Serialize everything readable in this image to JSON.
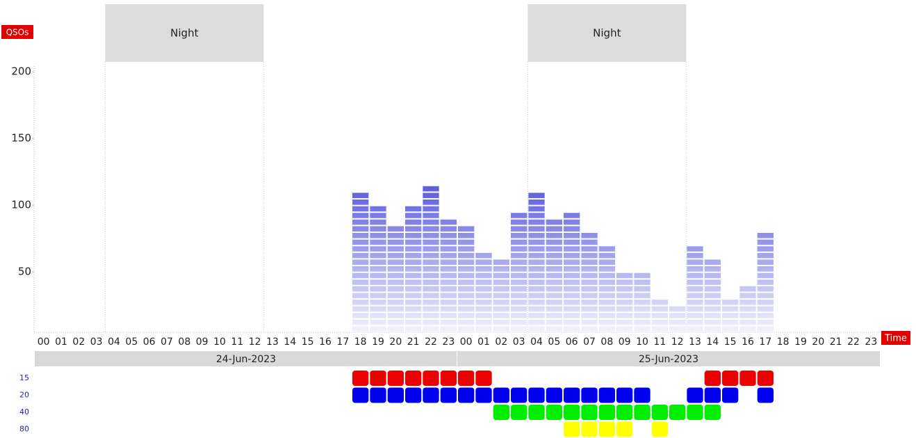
{
  "chart_data": {
    "type": "bar",
    "y_label": "QSOs",
    "x_label": "Time",
    "ylim": [
      0,
      210
    ],
    "yticks": [
      50,
      100,
      150,
      200
    ],
    "color": "#5050dc",
    "categories": [
      "00",
      "01",
      "02",
      "03",
      "04",
      "05",
      "06",
      "07",
      "08",
      "09",
      "10",
      "11",
      "12",
      "13",
      "14",
      "15",
      "16",
      "17",
      "18",
      "19",
      "20",
      "21",
      "22",
      "23",
      "00",
      "01",
      "02",
      "03",
      "04",
      "05",
      "06",
      "07",
      "08",
      "09",
      "10",
      "11",
      "12",
      "13",
      "14",
      "15",
      "16",
      "17",
      "18",
      "19",
      "20",
      "21",
      "22",
      "23"
    ],
    "values": [
      null,
      null,
      null,
      null,
      null,
      null,
      null,
      null,
      null,
      null,
      null,
      null,
      null,
      null,
      null,
      null,
      null,
      null,
      110,
      100,
      85,
      100,
      115,
      90,
      85,
      65,
      60,
      95,
      110,
      90,
      95,
      80,
      70,
      50,
      50,
      30,
      25,
      70,
      60,
      30,
      40,
      80,
      null,
      null,
      null,
      null,
      null,
      null
    ],
    "dates": [
      {
        "label": "24-Jun-2023",
        "start": 0,
        "end": 24
      },
      {
        "label": "25-Jun-2023",
        "start": 24,
        "end": 48
      }
    ],
    "night": [
      {
        "label": "Night",
        "start": 4,
        "end": 13
      },
      {
        "label": "Night",
        "start": 28,
        "end": 37
      }
    ],
    "bands": [
      {
        "name": "15",
        "color": "#ee0000",
        "hours": [
          18,
          19,
          20,
          21,
          22,
          23,
          24,
          25,
          38,
          39,
          40,
          41
        ]
      },
      {
        "name": "20",
        "color": "#0000ee",
        "hours": [
          18,
          19,
          20,
          21,
          22,
          23,
          24,
          25,
          26,
          27,
          28,
          29,
          30,
          31,
          32,
          33,
          34,
          37,
          38,
          39,
          41
        ]
      },
      {
        "name": "40",
        "color": "#00ee00",
        "hours": [
          26,
          27,
          28,
          29,
          30,
          31,
          32,
          33,
          34,
          35,
          36,
          37,
          38
        ]
      },
      {
        "name": "80",
        "color": "#ffff00",
        "hours": [
          30,
          31,
          32,
          33,
          35
        ]
      }
    ]
  }
}
